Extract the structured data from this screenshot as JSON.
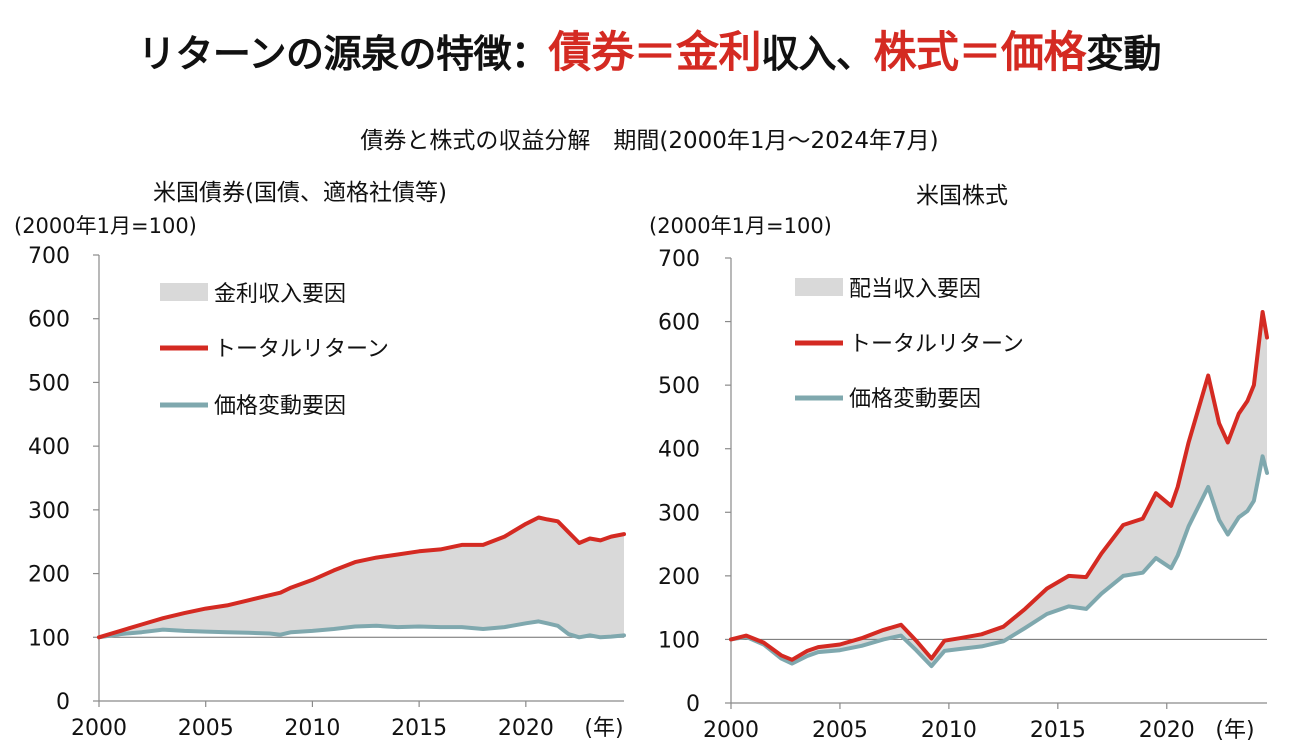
{
  "title": {
    "part1": "リターンの源泉の特徴：",
    "part2": "債券＝金利",
    "part3": "収入、",
    "part4": "株式＝価格",
    "part5": "変動"
  },
  "subtitle": "債券と株式の収益分解　期間(2000年1月～2024年7月)",
  "colors": {
    "total_return": "#d42a22",
    "price": "#7fa8ae",
    "income_fill": "#d9d9d9",
    "title_accent": "#d42a22"
  },
  "chart_data": [
    {
      "type": "area",
      "title": "米国債券(国債、適格社債等)",
      "ylabel": "(2000年1月=100)",
      "xlabel": "(年)",
      "ylim": [
        0,
        700
      ],
      "xlim": [
        2000,
        2024.6
      ],
      "yticks": [
        "0",
        "100",
        "200",
        "300",
        "400",
        "500",
        "600",
        "700"
      ],
      "xticks": [
        "2000",
        "2005",
        "2010",
        "2015",
        "2020"
      ],
      "baseline": 100,
      "legend_placement": "upper-left",
      "legend": [
        {
          "label": "金利収入要因",
          "kind": "area"
        },
        {
          "label": "トータルリターン",
          "kind": "line"
        },
        {
          "label": "価格変動要因",
          "kind": "line"
        }
      ],
      "series": [
        {
          "name": "トータルリターン",
          "x": [
            2000,
            2001,
            2002,
            2003,
            2004,
            2005,
            2006,
            2007,
            2008,
            2008.5,
            2009,
            2010,
            2011,
            2012,
            2013,
            2014,
            2015,
            2016,
            2017,
            2018,
            2019,
            2020,
            2020.6,
            2021,
            2021.5,
            2022,
            2022.5,
            2023,
            2023.5,
            2024,
            2024.6
          ],
          "y": [
            100,
            110,
            120,
            130,
            138,
            145,
            150,
            158,
            166,
            170,
            178,
            190,
            205,
            218,
            225,
            230,
            235,
            238,
            245,
            245,
            258,
            278,
            288,
            285,
            282,
            265,
            248,
            255,
            252,
            258,
            262
          ]
        },
        {
          "name": "価格変動要因",
          "x": [
            2000,
            2001,
            2002,
            2003,
            2004,
            2005,
            2006,
            2007,
            2008,
            2008.5,
            2009,
            2010,
            2011,
            2012,
            2013,
            2014,
            2015,
            2016,
            2017,
            2018,
            2019,
            2020,
            2020.6,
            2021,
            2021.5,
            2022,
            2022.5,
            2023,
            2023.5,
            2024,
            2024.6
          ],
          "y": [
            100,
            105,
            108,
            112,
            110,
            109,
            108,
            107,
            106,
            104,
            108,
            110,
            113,
            117,
            118,
            116,
            117,
            116,
            116,
            113,
            116,
            122,
            125,
            122,
            118,
            105,
            100,
            103,
            100,
            101,
            103
          ]
        }
      ]
    },
    {
      "type": "area",
      "title": "米国株式",
      "ylabel": "(2000年1月=100)",
      "xlabel": "(年)",
      "ylim": [
        0,
        700
      ],
      "xlim": [
        2000,
        2024.6
      ],
      "yticks": [
        "0",
        "100",
        "200",
        "300",
        "400",
        "500",
        "600",
        "700"
      ],
      "xticks": [
        "2000",
        "2005",
        "2010",
        "2015",
        "2020"
      ],
      "baseline": 100,
      "legend_placement": "upper-left",
      "legend": [
        {
          "label": "配当収入要因",
          "kind": "area"
        },
        {
          "label": "トータルリターン",
          "kind": "line"
        },
        {
          "label": "価格変動要因",
          "kind": "line"
        }
      ],
      "series": [
        {
          "name": "トータルリターン",
          "x": [
            2000,
            2000.7,
            2001.5,
            2002.3,
            2002.8,
            2003.5,
            2004,
            2005,
            2006,
            2007,
            2007.8,
            2008.5,
            2009.2,
            2009.8,
            2010.5,
            2011.5,
            2012.5,
            2013.5,
            2014.5,
            2015.5,
            2016.3,
            2017,
            2018,
            2018.9,
            2019.5,
            2020.2,
            2020.5,
            2021,
            2021.9,
            2022.4,
            2022.8,
            2023.3,
            2023.7,
            2024,
            2024.4,
            2024.6
          ],
          "y": [
            100,
            106,
            95,
            75,
            68,
            82,
            88,
            92,
            102,
            115,
            123,
            98,
            70,
            98,
            102,
            108,
            120,
            148,
            180,
            200,
            198,
            235,
            280,
            290,
            330,
            310,
            340,
            410,
            515,
            440,
            410,
            455,
            475,
            500,
            615,
            575
          ]
        },
        {
          "name": "価格変動要因",
          "x": [
            2000,
            2000.7,
            2001.5,
            2002.3,
            2002.8,
            2003.5,
            2004,
            2005,
            2006,
            2007,
            2007.8,
            2008.5,
            2009.2,
            2009.8,
            2010.5,
            2011.5,
            2012.5,
            2013.5,
            2014.5,
            2015.5,
            2016.3,
            2017,
            2018,
            2018.9,
            2019.5,
            2020.2,
            2020.5,
            2021,
            2021.9,
            2022.4,
            2022.8,
            2023.3,
            2023.7,
            2024,
            2024.4,
            2024.6
          ],
          "y": [
            100,
            104,
            92,
            70,
            62,
            74,
            80,
            83,
            90,
            100,
            106,
            83,
            58,
            82,
            85,
            89,
            97,
            118,
            140,
            152,
            148,
            172,
            200,
            205,
            228,
            212,
            232,
            278,
            340,
            288,
            265,
            292,
            302,
            318,
            388,
            362
          ]
        }
      ]
    }
  ]
}
